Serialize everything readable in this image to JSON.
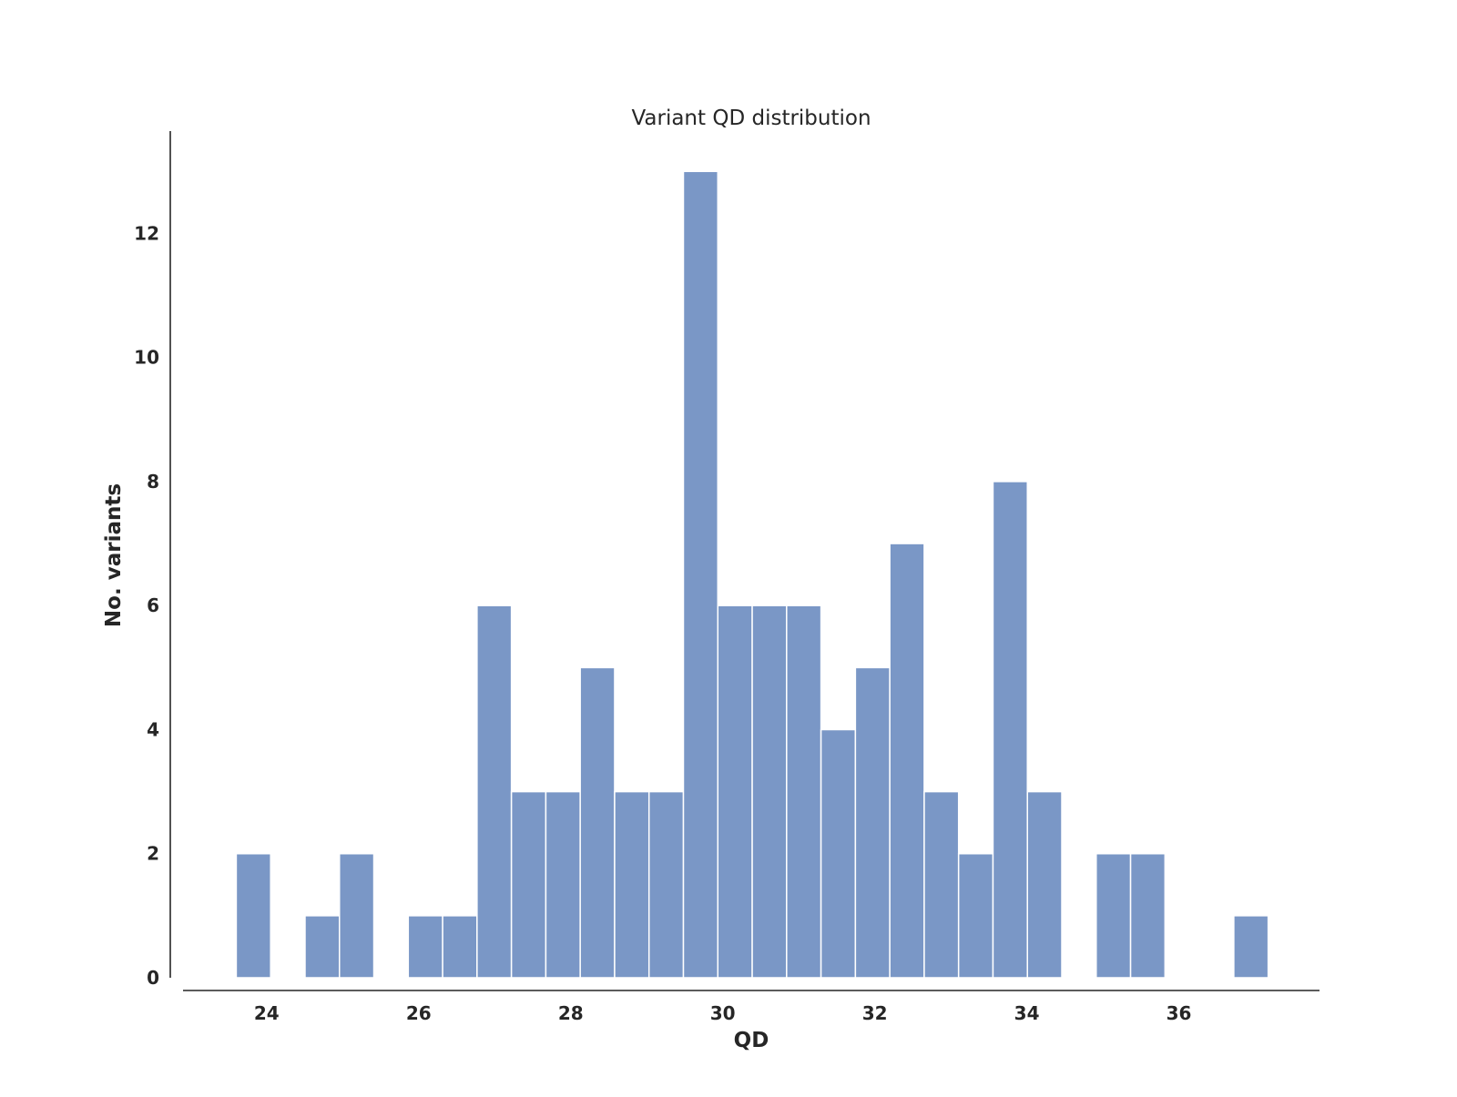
{
  "chart_data": {
    "type": "bar",
    "title": "Variant QD distribution",
    "xlabel": "QD",
    "ylabel": "No. variants",
    "xlim": [
      22.9,
      37.85
    ],
    "ylim": [
      0,
      13.65
    ],
    "x_ticks": [
      24,
      26,
      28,
      30,
      32,
      34,
      36
    ],
    "y_ticks": [
      0,
      2,
      4,
      6,
      8,
      10,
      12
    ],
    "bin_width": 0.4525,
    "bin_start": 23.6,
    "values": [
      2,
      0,
      1,
      2,
      0,
      1,
      1,
      6,
      3,
      3,
      5,
      3,
      3,
      13,
      6,
      6,
      6,
      4,
      5,
      7,
      3,
      2,
      8,
      3,
      0,
      2,
      2,
      0,
      0,
      1
    ],
    "bar_color": "#7a97c6",
    "grid": false
  }
}
